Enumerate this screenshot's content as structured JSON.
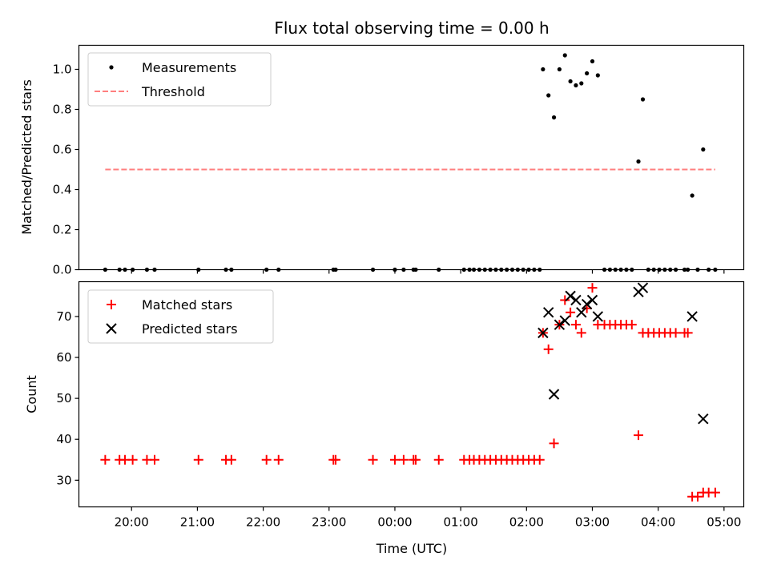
{
  "chart_data": [
    {
      "type": "scatter",
      "title": "Flux total observing time = 0.00 h",
      "xlabel": "",
      "ylabel": "Matched/Predicted stars",
      "ylim": [
        0,
        1.12
      ],
      "yticks": [
        "0.0",
        "0.2",
        "0.4",
        "0.6",
        "0.8",
        "1.0"
      ],
      "xlim": [
        "19:12",
        "05:18"
      ],
      "xticks": [
        "20:00",
        "21:00",
        "22:00",
        "23:00",
        "00:00",
        "01:00",
        "02:00",
        "03:00",
        "04:00",
        "05:00"
      ],
      "grid": false,
      "legend_position": "top-left",
      "series": [
        {
          "name": "Measurements",
          "marker": "dot",
          "color": "#000000",
          "points": [
            [
              "19:36",
              0
            ],
            [
              "19:49",
              0
            ],
            [
              "19:54",
              0
            ],
            [
              "20:01",
              0
            ],
            [
              "20:14",
              0
            ],
            [
              "20:21",
              0
            ],
            [
              "21:01",
              0
            ],
            [
              "21:26",
              0
            ],
            [
              "21:31",
              0
            ],
            [
              "22:03",
              0
            ],
            [
              "22:14",
              0
            ],
            [
              "23:04",
              0
            ],
            [
              "23:06",
              0
            ],
            [
              "23:40",
              0
            ],
            [
              "00:00",
              0
            ],
            [
              "00:08",
              0
            ],
            [
              "00:17",
              0
            ],
            [
              "00:19",
              0
            ],
            [
              "00:40",
              0
            ],
            [
              "01:03",
              0
            ],
            [
              "01:08",
              0
            ],
            [
              "01:12",
              0
            ],
            [
              "01:17",
              0
            ],
            [
              "01:22",
              0
            ],
            [
              "01:27",
              0
            ],
            [
              "01:32",
              0
            ],
            [
              "01:37",
              0
            ],
            [
              "01:42",
              0
            ],
            [
              "01:47",
              0
            ],
            [
              "01:52",
              0
            ],
            [
              "01:57",
              0
            ],
            [
              "02:02",
              0
            ],
            [
              "02:07",
              0
            ],
            [
              "02:12",
              0
            ],
            [
              "02:15",
              1.0
            ],
            [
              "02:20",
              0.87
            ],
            [
              "02:25",
              0.76
            ],
            [
              "02:30",
              1.0
            ],
            [
              "02:35",
              1.07
            ],
            [
              "02:40",
              0.94
            ],
            [
              "02:45",
              0.92
            ],
            [
              "02:50",
              0.93
            ],
            [
              "02:55",
              0.98
            ],
            [
              "03:00",
              1.04
            ],
            [
              "03:05",
              0.97
            ],
            [
              "03:11",
              0
            ],
            [
              "03:16",
              0
            ],
            [
              "03:21",
              0
            ],
            [
              "03:26",
              0
            ],
            [
              "03:31",
              0
            ],
            [
              "03:36",
              0
            ],
            [
              "03:42",
              0.54
            ],
            [
              "03:46",
              0.85
            ],
            [
              "03:51",
              0
            ],
            [
              "03:56",
              0
            ],
            [
              "04:01",
              0
            ],
            [
              "04:06",
              0
            ],
            [
              "04:11",
              0
            ],
            [
              "04:16",
              0
            ],
            [
              "04:24",
              0
            ],
            [
              "04:27",
              0
            ],
            [
              "04:31",
              0.37
            ],
            [
              "04:36",
              0
            ],
            [
              "04:41",
              0.6
            ],
            [
              "04:46",
              0
            ],
            [
              "04:52",
              0
            ]
          ]
        },
        {
          "name": "Threshold",
          "marker": "dashed-line",
          "color": "#ff7f7f",
          "points": [
            [
              "19:36",
              0.5
            ],
            [
              "04:52",
              0.5
            ]
          ]
        }
      ]
    },
    {
      "type": "scatter",
      "title": "",
      "xlabel": "Time (UTC)",
      "ylabel": "Count",
      "ylim": [
        23.5,
        78.5
      ],
      "yticks": [
        "30",
        "40",
        "50",
        "60",
        "70"
      ],
      "xlim": [
        "19:12",
        "05:18"
      ],
      "xticks": [
        "20:00",
        "21:00",
        "22:00",
        "23:00",
        "00:00",
        "01:00",
        "02:00",
        "03:00",
        "04:00",
        "05:00"
      ],
      "grid": false,
      "legend_position": "top-left",
      "series": [
        {
          "name": "Matched stars",
          "marker": "plus",
          "color": "#ff0000",
          "points": [
            [
              "19:36",
              35
            ],
            [
              "19:49",
              35
            ],
            [
              "19:54",
              35
            ],
            [
              "20:01",
              35
            ],
            [
              "20:14",
              35
            ],
            [
              "20:21",
              35
            ],
            [
              "21:01",
              35
            ],
            [
              "21:26",
              35
            ],
            [
              "21:31",
              35
            ],
            [
              "22:03",
              35
            ],
            [
              "22:14",
              35
            ],
            [
              "23:04",
              35
            ],
            [
              "23:06",
              35
            ],
            [
              "23:40",
              35
            ],
            [
              "00:00",
              35
            ],
            [
              "00:08",
              35
            ],
            [
              "00:17",
              35
            ],
            [
              "00:19",
              35
            ],
            [
              "00:40",
              35
            ],
            [
              "01:03",
              35
            ],
            [
              "01:08",
              35
            ],
            [
              "01:12",
              35
            ],
            [
              "01:17",
              35
            ],
            [
              "01:22",
              35
            ],
            [
              "01:27",
              35
            ],
            [
              "01:32",
              35
            ],
            [
              "01:37",
              35
            ],
            [
              "01:42",
              35
            ],
            [
              "01:47",
              35
            ],
            [
              "01:52",
              35
            ],
            [
              "01:57",
              35
            ],
            [
              "02:02",
              35
            ],
            [
              "02:07",
              35
            ],
            [
              "02:12",
              35
            ],
            [
              "02:15",
              66
            ],
            [
              "02:20",
              62
            ],
            [
              "02:25",
              39
            ],
            [
              "02:30",
              68
            ],
            [
              "02:35",
              74
            ],
            [
              "02:40",
              71
            ],
            [
              "02:45",
              68
            ],
            [
              "02:50",
              66
            ],
            [
              "02:55",
              72
            ],
            [
              "03:00",
              77
            ],
            [
              "03:05",
              68
            ],
            [
              "03:11",
              68
            ],
            [
              "03:16",
              68
            ],
            [
              "03:21",
              68
            ],
            [
              "03:26",
              68
            ],
            [
              "03:31",
              68
            ],
            [
              "03:36",
              68
            ],
            [
              "03:42",
              41
            ],
            [
              "03:46",
              66
            ],
            [
              "03:51",
              66
            ],
            [
              "03:56",
              66
            ],
            [
              "04:01",
              66
            ],
            [
              "04:06",
              66
            ],
            [
              "04:11",
              66
            ],
            [
              "04:16",
              66
            ],
            [
              "04:24",
              66
            ],
            [
              "04:27",
              66
            ],
            [
              "04:31",
              26
            ],
            [
              "04:36",
              26
            ],
            [
              "04:41",
              27
            ],
            [
              "04:46",
              27
            ],
            [
              "04:52",
              27
            ]
          ]
        },
        {
          "name": "Predicted stars",
          "marker": "x",
          "color": "#000000",
          "points": [
            [
              "02:15",
              66
            ],
            [
              "02:20",
              71
            ],
            [
              "02:25",
              51
            ],
            [
              "02:30",
              68
            ],
            [
              "02:35",
              69
            ],
            [
              "02:40",
              75
            ],
            [
              "02:45",
              74
            ],
            [
              "02:50",
              71
            ],
            [
              "02:55",
              73
            ],
            [
              "03:00",
              74
            ],
            [
              "03:05",
              70
            ],
            [
              "03:42",
              76
            ],
            [
              "03:46",
              77
            ],
            [
              "04:31",
              70
            ],
            [
              "04:41",
              45
            ]
          ]
        }
      ]
    }
  ]
}
